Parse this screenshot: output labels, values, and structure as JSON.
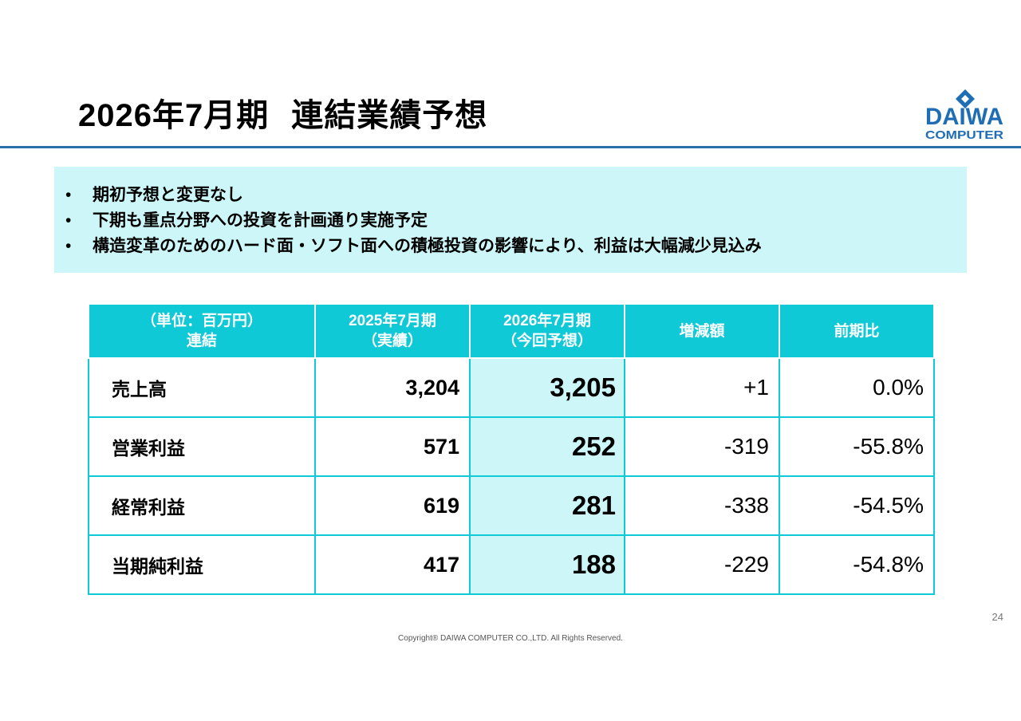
{
  "header": {
    "title_period": "2026年7月期",
    "title_subject": "連結業績予想"
  },
  "logo": {
    "line1": "DAIWA",
    "line2": "COMPUTER",
    "brand_color": "#1f6db5"
  },
  "summary": {
    "bullet": "•",
    "items": [
      "期初予想と変更なし",
      "下期も重点分野への投資を計画通り実施予定",
      "構造変革のためのハード面・ソフト面への積極投資の影響により、利益は大幅減少見込み"
    ]
  },
  "table": {
    "headers": {
      "col0_line1": "（単位：百万円）",
      "col0_line2": "連結",
      "col1_line1": "2025年7月期",
      "col1_line2": "（実績）",
      "col2_line1": "2026年7月期",
      "col2_line2": "（今回予想）",
      "col3": "増減額",
      "col4": "前期比"
    },
    "rows": [
      {
        "label": "売上高",
        "prev": "3,204",
        "forecast": "3,205",
        "change": "+1",
        "ratio": "0.0%"
      },
      {
        "label": "営業利益",
        "prev": "571",
        "forecast": "252",
        "change": "-319",
        "ratio": "-55.8%"
      },
      {
        "label": "経常利益",
        "prev": "619",
        "forecast": "281",
        "change": "-338",
        "ratio": "-54.5%"
      },
      {
        "label": "当期純利益",
        "prev": "417",
        "forecast": "188",
        "change": "-229",
        "ratio": "-54.8%"
      }
    ]
  },
  "footer": {
    "page_number": "24",
    "copyright": "Copyright® DAIWA COMPUTER CO.,LTD. All Rights Reserved."
  },
  "colors": {
    "accent_cyan": "#10c9d6",
    "highlight_bg": "#cdf6f8",
    "rule_blue": "#2a6fa8"
  }
}
